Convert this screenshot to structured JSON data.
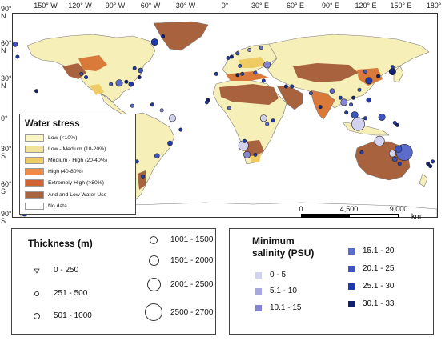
{
  "map": {
    "lon_ticks": [
      "150° W",
      "120° W",
      "90° W",
      "60° W",
      "30° W",
      "0°",
      "30° E",
      "60° E",
      "90° E",
      "120° E",
      "150° E",
      "180°"
    ],
    "lat_ticks": [
      "90° N",
      "60° N",
      "30° N",
      "0°",
      "30° S",
      "60° S",
      "90° S"
    ],
    "colors": {
      "ocean": "#ffffff",
      "land_low": "#f7efb8",
      "arid": "#a8623e",
      "high": "#d97a3a",
      "medium_high": "#e8c06a",
      "coast": "#7a7a7a"
    },
    "sites": [
      {
        "lon": -178,
        "lat": 63,
        "thickness": "501 - 1000",
        "salinity": "20.1 - 25"
      },
      {
        "lon": -77,
        "lat": 42,
        "thickness": "251 - 500",
        "salinity": "25.1 - 30"
      },
      {
        "lon": -72,
        "lat": 40,
        "thickness": "501 - 1000",
        "salinity": "20.1 - 25"
      },
      {
        "lon": -73,
        "lat": 34,
        "thickness": "251 - 500",
        "salinity": "30.1 - 33"
      },
      {
        "lon": -80,
        "lat": 28,
        "thickness": "501 - 1000",
        "salinity": "25.1 - 30"
      },
      {
        "lon": -84,
        "lat": 30,
        "thickness": "251 - 500",
        "salinity": "30.1 - 33"
      },
      {
        "lon": -90,
        "lat": 29,
        "thickness": "1001 - 1500",
        "salinity": "15.1 - 20"
      },
      {
        "lon": -97,
        "lat": 28,
        "thickness": "251 - 500",
        "salinity": "20.1 - 25"
      },
      {
        "lon": -118,
        "lat": 34,
        "thickness": "251 - 500",
        "salinity": "25.1 - 30"
      },
      {
        "lon": -122,
        "lat": 37,
        "thickness": "251 - 500",
        "salinity": "20.1 - 25"
      },
      {
        "lon": -79,
        "lat": 9,
        "thickness": "251 - 500",
        "salinity": "15.1 - 20"
      },
      {
        "lon": -62,
        "lat": 10,
        "thickness": "251 - 500",
        "salinity": "25.1 - 30"
      },
      {
        "lon": -54,
        "lat": 5,
        "thickness": "251 - 500",
        "salinity": "10.1 - 15"
      },
      {
        "lon": -45,
        "lat": -2,
        "thickness": "1001 - 1500",
        "salinity": "0 - 5"
      },
      {
        "lon": -38,
        "lat": -12,
        "thickness": "251 - 500",
        "salinity": "25.1 - 30"
      },
      {
        "lon": -47,
        "lat": -24,
        "thickness": "501 - 1000",
        "salinity": "25.1 - 30"
      },
      {
        "lon": -58,
        "lat": -35,
        "thickness": "501 - 1000",
        "salinity": "20.1 - 25"
      },
      {
        "lon": -60,
        "lat": 65,
        "thickness": "1001 - 1500",
        "salinity": "25.1 - 30"
      },
      {
        "lon": -53,
        "lat": 70,
        "thickness": "251 - 500",
        "salinity": "30.1 - 33"
      },
      {
        "lon": -70,
        "lat": -53,
        "thickness": "251 - 500",
        "salinity": "25.1 - 30"
      },
      {
        "lon": -75,
        "lat": -40,
        "thickness": "251 - 500",
        "salinity": "25.1 - 30"
      },
      {
        "lon": 2,
        "lat": 51,
        "thickness": "251 - 500",
        "salinity": "25.1 - 30"
      },
      {
        "lon": 10,
        "lat": 55,
        "thickness": "251 - 500",
        "salinity": "20.1 - 25"
      },
      {
        "lon": 5,
        "lat": 52,
        "thickness": "251 - 500",
        "salinity": "30.1 - 33"
      },
      {
        "lon": 20,
        "lat": 58,
        "thickness": "251 - 500",
        "salinity": "10.1 - 15"
      },
      {
        "lon": 30,
        "lat": 60,
        "thickness": "251 - 500",
        "salinity": "15.1 - 20"
      },
      {
        "lon": 12,
        "lat": 44,
        "thickness": "251 - 500",
        "salinity": "20.1 - 25"
      },
      {
        "lon": 35,
        "lat": 45,
        "thickness": "1001 - 1500",
        "salinity": "10.1 - 15"
      },
      {
        "lon": 14,
        "lat": 37,
        "thickness": "251 - 500",
        "salinity": "25.1 - 30"
      },
      {
        "lon": 25,
        "lat": 38,
        "thickness": "251 - 500",
        "salinity": "20.1 - 25"
      },
      {
        "lon": 32,
        "lat": 31,
        "thickness": "251 - 500",
        "salinity": "25.1 - 30"
      },
      {
        "lon": 10,
        "lat": 36,
        "thickness": "251 - 500",
        "salinity": "30.1 - 33"
      },
      {
        "lon": -8,
        "lat": 37,
        "thickness": "251 - 500",
        "salinity": "25.1 - 30"
      },
      {
        "lon": 51,
        "lat": 26,
        "thickness": "251 - 500",
        "salinity": "30.1 - 33"
      },
      {
        "lon": 56,
        "lat": 26,
        "thickness": "251 - 500",
        "salinity": "25.1 - 30"
      },
      {
        "lon": 72,
        "lat": 20,
        "thickness": "251 - 500",
        "salinity": "20.1 - 25"
      },
      {
        "lon": 80,
        "lat": 8,
        "thickness": "251 - 500",
        "salinity": "30.1 - 33"
      },
      {
        "lon": 90,
        "lat": 22,
        "thickness": "501 - 1000",
        "salinity": "15.1 - 20"
      },
      {
        "lon": 97,
        "lat": 16,
        "thickness": "251 - 500",
        "salinity": "25.1 - 30"
      },
      {
        "lon": 100,
        "lat": 12,
        "thickness": "1001 - 1500",
        "salinity": "10.1 - 15"
      },
      {
        "lon": 106,
        "lat": 10,
        "thickness": "251 - 500",
        "salinity": "20.1 - 25"
      },
      {
        "lon": 108,
        "lat": 16,
        "thickness": "251 - 500",
        "salinity": "30.1 - 33"
      },
      {
        "lon": 113,
        "lat": 23,
        "thickness": "251 - 500",
        "salinity": "20.1 - 25"
      },
      {
        "lon": 121,
        "lat": 31,
        "thickness": "1001 - 1500",
        "salinity": "25.1 - 30"
      },
      {
        "lon": 118,
        "lat": 39,
        "thickness": "251 - 500",
        "salinity": "20.1 - 25"
      },
      {
        "lon": 129,
        "lat": 35,
        "thickness": "251 - 500",
        "salinity": "30.1 - 33"
      },
      {
        "lon": 141,
        "lat": 39,
        "thickness": "1001 - 1500",
        "salinity": "30.1 - 33"
      },
      {
        "lon": 141,
        "lat": 43,
        "thickness": "251 - 500",
        "salinity": "25.1 - 30"
      },
      {
        "lon": 121,
        "lat": 14,
        "thickness": "501 - 1000",
        "salinity": "25.1 - 30"
      },
      {
        "lon": 109,
        "lat": 1,
        "thickness": "1001 - 1500",
        "salinity": "20.1 - 25"
      },
      {
        "lon": 112,
        "lat": -7,
        "thickness": "2001 - 2500",
        "salinity": "0 - 5"
      },
      {
        "lon": 102,
        "lat": 3,
        "thickness": "251 - 500",
        "salinity": "25.1 - 30"
      },
      {
        "lon": 118,
        "lat": -2,
        "thickness": "251 - 500",
        "salinity": "25.1 - 30"
      },
      {
        "lon": 132,
        "lat": -1,
        "thickness": "1001 - 1500",
        "salinity": "20.1 - 25"
      },
      {
        "lon": 143,
        "lat": -6,
        "thickness": "251 - 500",
        "salinity": "25.1 - 30"
      },
      {
        "lon": 145,
        "lat": -8,
        "thickness": "251 - 500",
        "salinity": "30.1 - 33"
      },
      {
        "lon": 32,
        "lat": -2,
        "thickness": "1001 - 1500",
        "salinity": "0 - 5"
      },
      {
        "lon": 35,
        "lat": -7,
        "thickness": "251 - 500",
        "salinity": "15.1 - 20"
      },
      {
        "lon": 40,
        "lat": -4,
        "thickness": "251 - 500",
        "salinity": "25.1 - 30"
      },
      {
        "lon": 18,
        "lat": -34,
        "thickness": "1001 - 1500",
        "salinity": "10.1 - 15"
      },
      {
        "lon": 15,
        "lat": -26,
        "thickness": "1501 - 2000",
        "salinity": "0 - 5"
      },
      {
        "lon": 25,
        "lat": -34,
        "thickness": "251 - 500",
        "salinity": "25.1 - 30"
      },
      {
        "lon": 16,
        "lat": -22,
        "thickness": "251 - 500",
        "salinity": "25.1 - 30"
      },
      {
        "lon": 3,
        "lat": 7,
        "thickness": "251 - 500",
        "salinity": "15.1 - 20"
      },
      {
        "lon": -15,
        "lat": 14,
        "thickness": "251 - 500",
        "salinity": "30.1 - 33"
      },
      {
        "lon": -16,
        "lat": 12,
        "thickness": "251 - 500",
        "salinity": "25.1 - 30"
      },
      {
        "lon": 130,
        "lat": -22,
        "thickness": "1501 - 2000",
        "salinity": "0 - 5"
      },
      {
        "lon": 151,
        "lat": -32,
        "thickness": "2500 - 2700",
        "salinity": "15.1 - 20"
      },
      {
        "lon": 146,
        "lat": -29,
        "thickness": "1001 - 1500",
        "salinity": "20.1 - 25"
      },
      {
        "lon": 141,
        "lat": -33,
        "thickness": "1001 - 1500",
        "salinity": "0 - 5"
      },
      {
        "lon": 115,
        "lat": -32,
        "thickness": "251 - 500",
        "salinity": "25.1 - 30"
      },
      {
        "lon": 143,
        "lat": -38,
        "thickness": "501 - 1000",
        "salinity": "20.1 - 25"
      },
      {
        "lon": 147,
        "lat": -42,
        "thickness": "251 - 500",
        "salinity": "25.1 - 30"
      },
      {
        "lon": 175,
        "lat": -40,
        "thickness": "251 - 500",
        "salinity": "25.1 - 30"
      },
      {
        "lon": 173,
        "lat": -44,
        "thickness": "251 - 500",
        "salinity": "30.1 - 33"
      },
      {
        "lon": 171,
        "lat": -42,
        "thickness": "251 - 500",
        "salinity": "30.1 - 33"
      },
      {
        "lon": -117,
        "lat": -75,
        "thickness": "251 - 500",
        "salinity": "25.1 - 30"
      },
      {
        "lon": -170,
        "lat": -85,
        "thickness": "1001 - 1500",
        "salinity": "25.1 - 30"
      },
      {
        "lon": -160,
        "lat": 22,
        "thickness": "251 - 500",
        "salinity": "30.1 - 33"
      },
      {
        "lon": -176,
        "lat": 52,
        "thickness": "251 - 500",
        "salinity": "25.1 - 30"
      }
    ]
  },
  "water_stress_legend": {
    "title": "Water stress",
    "items": [
      {
        "label": "Low (<10%)",
        "color": "#fbf6c8"
      },
      {
        "label": "Low - Medium (10-20%)",
        "color": "#f1e29a"
      },
      {
        "label": "Medium - High (20-40%)",
        "color": "#eecc63"
      },
      {
        "label": "High (40-80%)",
        "color": "#f08a46"
      },
      {
        "label": "Extremely High (>80%)",
        "color": "#cf6433"
      },
      {
        "label": "Arid and Low Water Use",
        "color": "#a8623e"
      },
      {
        "label": "No data",
        "color": "#ffffff"
      }
    ]
  },
  "scale_bar": {
    "labels": [
      "0",
      "4,500",
      "9,000"
    ],
    "unit": "km"
  },
  "thickness_legend": {
    "title": "Thickness (m)",
    "items": [
      {
        "label": "0 - 250",
        "size": 1
      },
      {
        "label": "251 - 500",
        "size": 2
      },
      {
        "label": "501 - 1000",
        "size": 3
      },
      {
        "label": "1001 - 1500",
        "size": 4
      },
      {
        "label": "1501 - 2000",
        "size": 5
      },
      {
        "label": "2001 - 2500",
        "size": 6
      },
      {
        "label": "2500 - 2700",
        "size": 7
      }
    ]
  },
  "salinity_legend": {
    "title_line1": "Minimum",
    "title_line2": "salinity (PSU)",
    "items": [
      {
        "label": "0 - 5",
        "color": "#d2d2f0"
      },
      {
        "label": "5.1 - 10",
        "color": "#a9a9e2"
      },
      {
        "label": "10.1 - 15",
        "color": "#8585d4"
      },
      {
        "label": "15.1 - 20",
        "color": "#5d6ccb"
      },
      {
        "label": "20.1 - 25",
        "color": "#3d55c0"
      },
      {
        "label": "25.1 - 30",
        "color": "#1f3aa8"
      },
      {
        "label": "30.1 - 33",
        "color": "#10206e"
      }
    ]
  }
}
